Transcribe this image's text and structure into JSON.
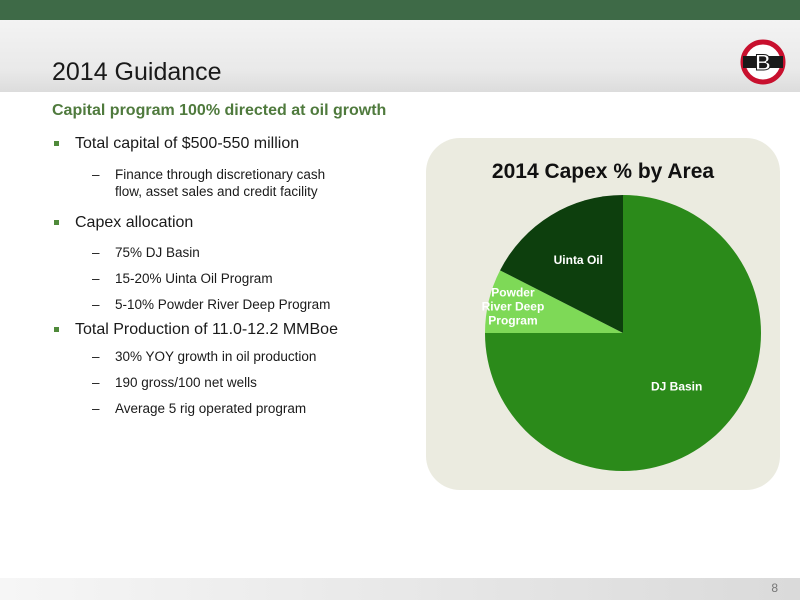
{
  "slide": {
    "title": "2014 Guidance",
    "subtitle": "Capital program 100% directed at oil growth",
    "page_number": "8",
    "logo_text": "B"
  },
  "bullets": [
    {
      "text": "Total capital of $500-550 million",
      "subs": [
        {
          "line1": "Finance through discretionary cash",
          "line2": "flow, asset sales and credit facility"
        }
      ]
    },
    {
      "text": "Capex allocation",
      "subs": [
        {
          "line1": "75% DJ Basin"
        },
        {
          "line1": "15-20% Uinta Oil Program"
        },
        {
          "line1": "5-10% Powder River Deep Program"
        }
      ]
    },
    {
      "text": "Total Production of 11.0-12.2 MMBoe",
      "subs": [
        {
          "line1": "30% YOY growth in oil production"
        },
        {
          "line1": "190 gross/100 net wells"
        },
        {
          "line1": "Average 5 rig operated program"
        }
      ]
    }
  ],
  "colors": {
    "top_band": "#3e6a47",
    "subtitle_green": "#4f7a3d",
    "dj_basin": "#2b8a1a",
    "uinta_oil": "#0d3f0d",
    "powder_river": "#7ed957",
    "logo_red": "#c8102e"
  },
  "chart_data": {
    "type": "pie",
    "title": "2014 Capex % by Area",
    "slices": [
      {
        "label": "DJ Basin",
        "value": 75,
        "color": "#2b8a1a",
        "label_color": "#ffffff"
      },
      {
        "label_lines": [
          "Powder",
          "River Deep",
          "Program"
        ],
        "value": 7.5,
        "color": "#7ed957",
        "label_color": "#ffffff"
      },
      {
        "label": "Uinta Oil",
        "value": 17.5,
        "color": "#0d3f0d",
        "label_color": "#ffffff"
      }
    ],
    "start": "top, clockwise"
  }
}
